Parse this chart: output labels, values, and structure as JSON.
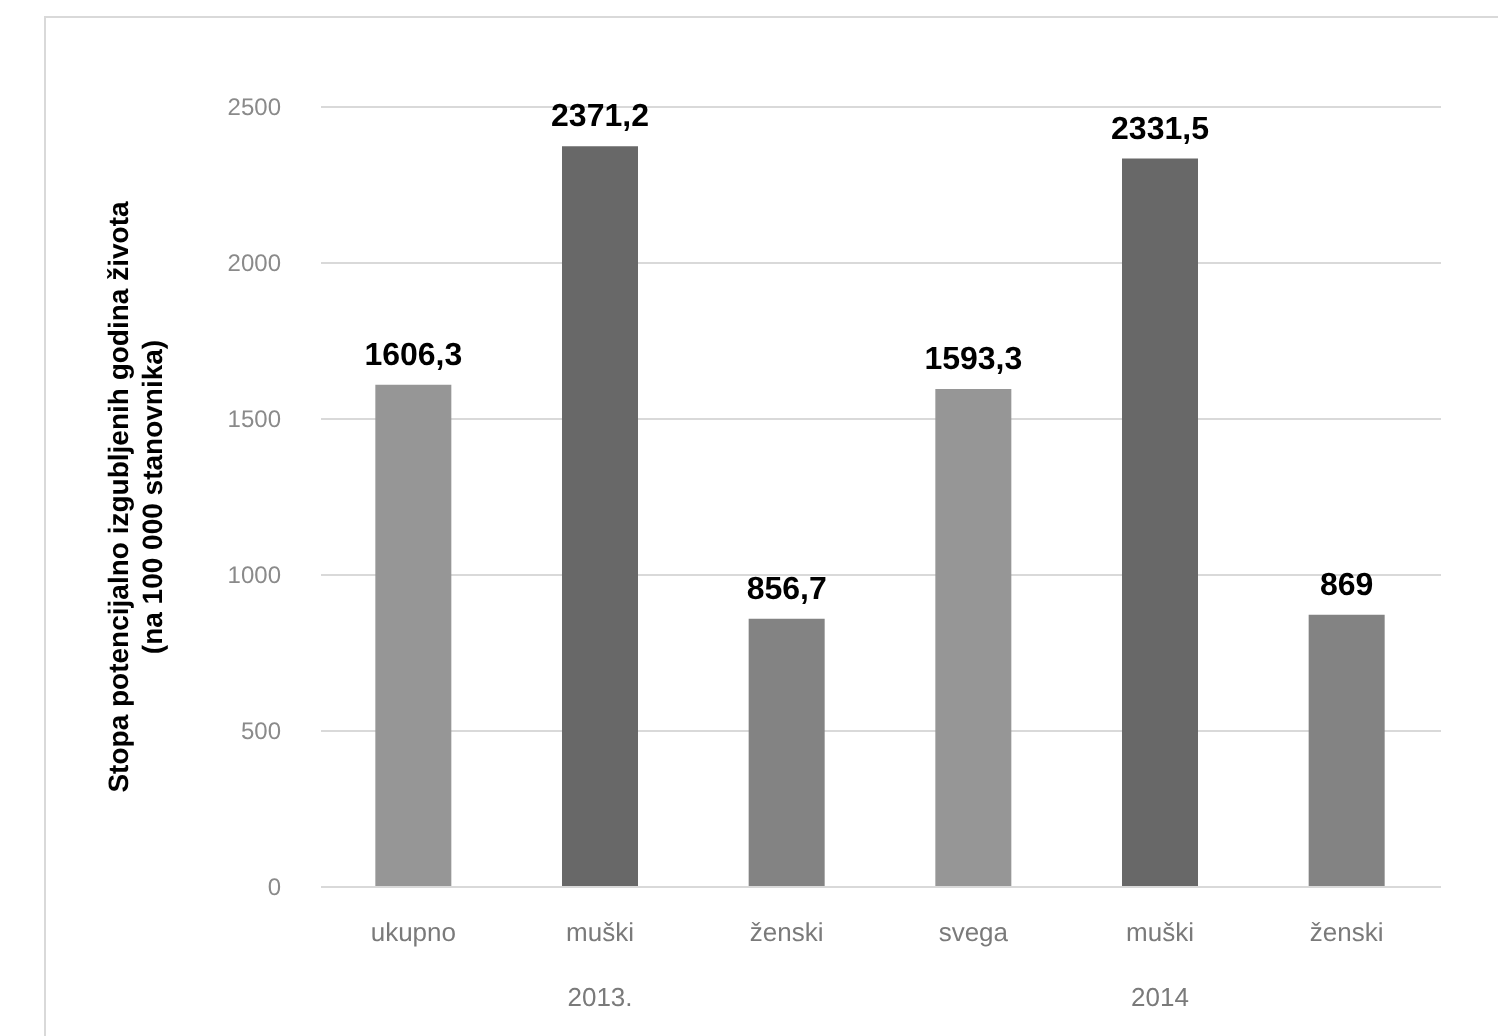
{
  "chart_data": {
    "type": "bar",
    "ylabel": "Stopa potencijalno izgubljenih godina života\n(na 100 000 stanovnika)",
    "categories": [
      "ukupno",
      "muški",
      "ženski",
      "svega",
      "muški",
      "ženski"
    ],
    "values": [
      1606.3,
      2371.2,
      856.7,
      1593.3,
      2331.5,
      869
    ],
    "colors": [
      "#969696",
      "#686868",
      "#838383",
      "#969696",
      "#686868",
      "#838383"
    ],
    "value_labels": [
      "1606,3",
      "2371,2",
      "856,7",
      "1593,3",
      "2331,5",
      "869"
    ],
    "ylim": [
      0,
      2500
    ],
    "yticks": [
      0,
      500,
      1000,
      1500,
      2000,
      2500
    ],
    "grid": "y",
    "annotations": [
      "2013.",
      "2014"
    ]
  }
}
